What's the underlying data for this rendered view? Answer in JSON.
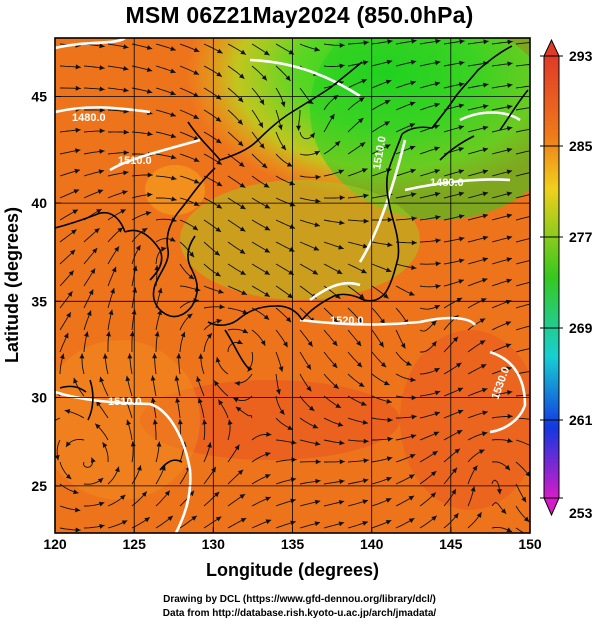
{
  "title": "MSM 06Z21May2024 (850.0hPa)",
  "axes": {
    "xlabel": "Longitude (degrees)",
    "ylabel": "Latitude  (degrees)",
    "x_ticks": [
      "120",
      "125",
      "130",
      "135",
      "140",
      "145",
      "150"
    ],
    "y_ticks": [
      "25",
      "30",
      "35",
      "40",
      "45"
    ]
  },
  "colorbar": {
    "labels": [
      "293",
      "285",
      "277",
      "269",
      "261",
      "253"
    ],
    "colors": [
      "#e03a28",
      "#ef7a1a",
      "#f0d01c",
      "#36c81f",
      "#18cfd2",
      "#1238e0",
      "#d51cc8"
    ]
  },
  "contour_labels": [
    "1480.0",
    "1510.0",
    "1510.0",
    "1510.0",
    "1480.0",
    "1520.0",
    "1530.0"
  ],
  "credits": {
    "line1": "Drawing by DCL (https://www.gfd-dennou.org/library/dcl/)",
    "line2": "Data from http://database.rish.kyoto-u.ac.jp/arch/jmadata/"
  },
  "chart_data": {
    "type": "heatmap",
    "title": "MSM 06Z21May2024 (850.0hPa)",
    "xlabel": "Longitude (degrees)",
    "ylabel": "Latitude  (degrees)",
    "xlim": [
      120,
      150
    ],
    "ylim": [
      22.4,
      47.6
    ],
    "colorbar_range": [
      253,
      293
    ],
    "colorbar_ticks": [
      293,
      285,
      277,
      269,
      261,
      253
    ],
    "contour_labels": [
      "1480.0",
      "1510.0",
      "1510.0",
      "1510.0",
      "1480.0",
      "1520.0",
      "1530.0"
    ]
  }
}
